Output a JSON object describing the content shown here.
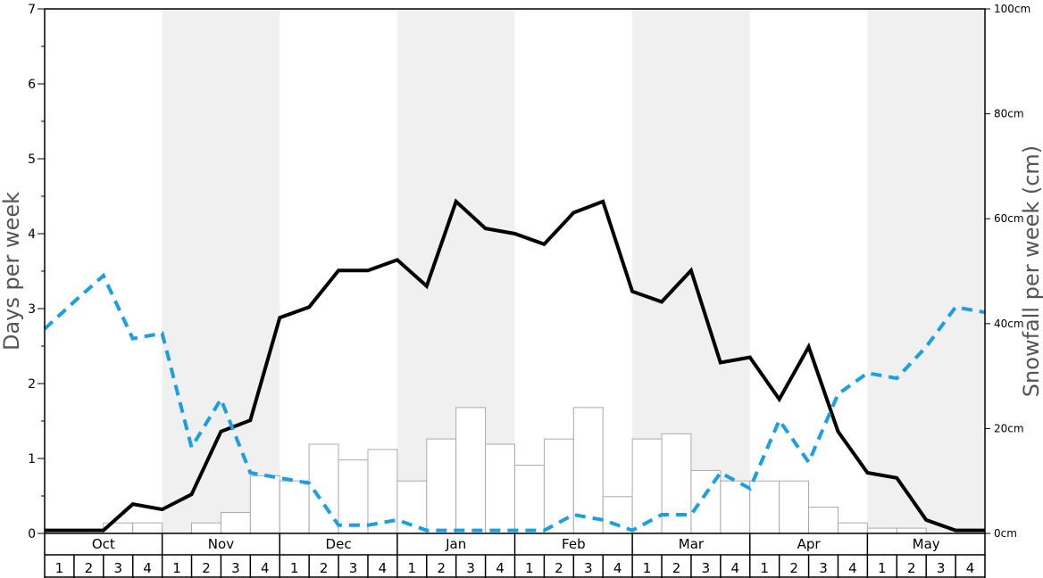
{
  "chart_data": {
    "type": "bar",
    "ylabel_left": "Days per week",
    "ylabel_right": "Snowfall per week (cm)",
    "ylim_left": [
      0,
      7
    ],
    "ylim_right": [
      0,
      100
    ],
    "yticks_left": [
      "0",
      "1",
      "2",
      "3",
      "4",
      "5",
      "6",
      "7"
    ],
    "yticks_right": [
      "0cm",
      "20cm",
      "40cm",
      "60cm",
      "80cm",
      "100cm"
    ],
    "months": [
      "Oct",
      "Nov",
      "Dec",
      "Jan",
      "Feb",
      "Mar",
      "Apr",
      "May"
    ],
    "week_labels": [
      "1",
      "2",
      "3",
      "4"
    ],
    "shaded_months": [
      "Nov",
      "Jan",
      "Mar",
      "May"
    ],
    "colors": {
      "days_line": "#000000",
      "snow_line": "#1a9fe0",
      "bar_fill": "#ffffff",
      "bar_stroke": "#aaaaaa",
      "shade": "#f0f0f0"
    },
    "series": [
      {
        "type": "bar",
        "axis": "right",
        "values": [
          0,
          0,
          2,
          2,
          0,
          2,
          4,
          11,
          10,
          17,
          14,
          16,
          10,
          18,
          24,
          17,
          13,
          18,
          24,
          7,
          18,
          19,
          12,
          10,
          10,
          10,
          5,
          2,
          1,
          1,
          0,
          0
        ]
      },
      {
        "type": "line",
        "axis": "left",
        "style": "solid",
        "values": [
          0.04,
          0.04,
          0.04,
          0.39,
          0.32,
          0.52,
          1.36,
          1.51,
          2.88,
          3.02,
          3.51,
          3.51,
          3.65,
          3.3,
          4.43,
          4.07,
          4.0,
          3.86,
          4.28,
          4.43,
          3.23,
          3.09,
          3.51,
          2.28,
          2.35,
          1.79,
          2.49,
          1.36,
          0.81,
          0.74,
          0.18,
          0.04,
          0.04
        ]
      },
      {
        "type": "line",
        "axis": "left",
        "style": "dashed",
        "values": [
          2.73,
          3.09,
          3.44,
          2.6,
          2.67,
          1.15,
          1.79,
          0.81,
          0.74,
          0.67,
          0.11,
          0.11,
          0.18,
          0.04,
          0.04,
          0.04,
          0.04,
          0.04,
          0.25,
          0.18,
          0.04,
          0.25,
          0.25,
          0.81,
          0.6,
          1.51,
          0.95,
          1.86,
          2.14,
          2.07,
          2.49,
          3.02,
          2.95
        ]
      }
    ]
  }
}
